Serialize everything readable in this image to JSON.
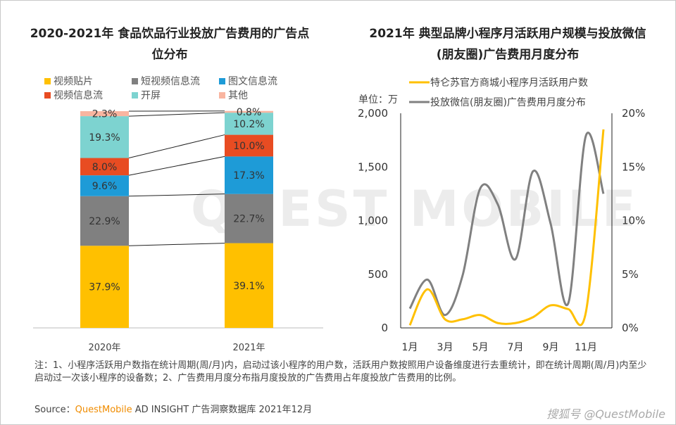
{
  "left": {
    "title": "2020-2021年 食品饮品行业投放广告费用的广告点位分布",
    "chart_data": {
      "type": "bar",
      "stacked": true,
      "categories": [
        "2020年",
        "2021年"
      ],
      "series": [
        {
          "name": "视频贴片",
          "color": "#FFC000",
          "values": [
            37.9,
            39.1
          ]
        },
        {
          "name": "短视频信息流",
          "color": "#808080",
          "values": [
            22.9,
            22.7
          ]
        },
        {
          "name": "图文信息流",
          "color": "#1E9BD7",
          "values": [
            9.6,
            17.3
          ]
        },
        {
          "name": "视频信息流",
          "color": "#E84C22",
          "values": [
            8.0,
            10.0
          ]
        },
        {
          "name": "开屏",
          "color": "#7DD3D0",
          "values": [
            19.3,
            10.2
          ]
        },
        {
          "name": "其他",
          "color": "#F9B5A0",
          "values": [
            2.3,
            0.8
          ]
        }
      ],
      "unit": "%",
      "legend": "top"
    }
  },
  "right": {
    "title": "2021年 典型品牌小程序月活跃用户规模与投放微信(朋友圈)广告费用月度分布",
    "chart_data": {
      "type": "line",
      "ylabel_left": "单位：万",
      "x": [
        "1月",
        "2月",
        "3月",
        "4月",
        "5月",
        "6月",
        "7月",
        "8月",
        "9月",
        "10月",
        "11月",
        "12月"
      ],
      "xticks": [
        "1月",
        "3月",
        "5月",
        "7月",
        "9月",
        "11月"
      ],
      "ylim_left": [
        0,
        2000
      ],
      "yticks_left": [
        "0",
        "500",
        "1,000",
        "1,500",
        "2,000"
      ],
      "ylim_right": [
        0,
        20
      ],
      "yticks_right": [
        "0%",
        "5%",
        "10%",
        "15%",
        "20%"
      ],
      "series": [
        {
          "name": "特仑苏官方商城小程序月活跃用户数",
          "axis": "left",
          "color": "#FFC000",
          "values": [
            25,
            360,
            80,
            80,
            120,
            45,
            45,
            100,
            210,
            175,
            145,
            1850
          ]
        },
        {
          "name": "投放微信(朋友圈)广告费用月度分布",
          "axis": "right",
          "color": "#808080",
          "values": [
            1.8,
            4.5,
            1.2,
            4.9,
            13.0,
            11.5,
            6.4,
            14.6,
            9.7,
            2.3,
            17.9,
            12.5
          ]
        }
      ],
      "legend": "top"
    }
  },
  "note": "注：1、小程序活跃用户数指在统计周期(周/月)内，启动过该小程序的用户数，活跃用户数按照用户设备维度进行去重统计，即在统计周期(周/月)内至少启动过一次该小程序的设备数；2、广告费用月度分布指月度投放的广告费用占年度投放广告费用的比例。",
  "source": {
    "label": "Source：",
    "brand": "QuestMobile",
    "rest": " AD INSIGHT 广告洞察数据库 2021年12月"
  },
  "watermark": "搜狐号 @QuestMobile",
  "bg_watermark": "QUEST MOBILE"
}
